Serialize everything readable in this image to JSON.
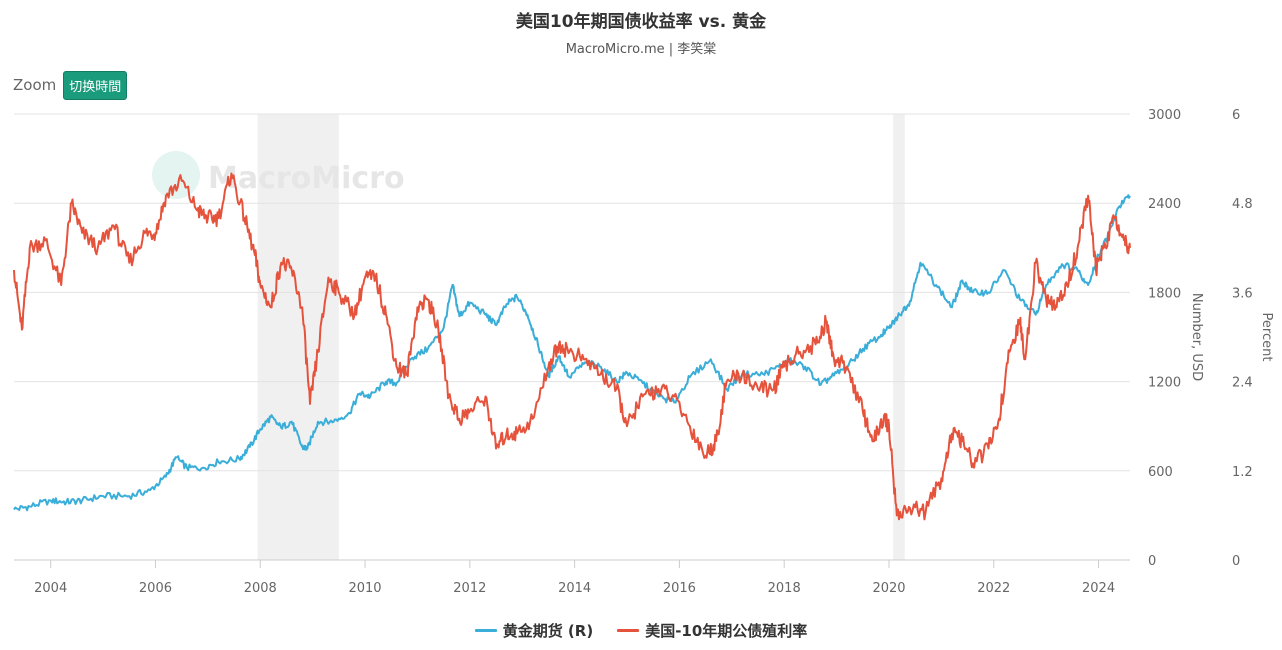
{
  "header": {
    "title": "美国10年期国债收益率 vs. 黄金",
    "subtitle": "MacroMicro.me | 李笑棠"
  },
  "zoom": {
    "label": "Zoom",
    "button_label": "切换時間"
  },
  "watermark": "MacroMicro",
  "colors": {
    "gold": "#3aaed8",
    "yield": "#e5533c",
    "recession": "#f0f0f0",
    "grid": "#e3e3e3"
  },
  "legend": [
    {
      "label": "黄金期货 (R)",
      "color": "#3aaed8"
    },
    {
      "label": "美国-10年期公债殖利率",
      "color": "#e5533c"
    }
  ],
  "chart_data": {
    "type": "line",
    "title": "美国10年期国债收益率 vs. 黄金",
    "x_range": [
      2003.3,
      2024.6
    ],
    "x_ticks": [
      2004,
      2006,
      2008,
      2010,
      2012,
      2014,
      2016,
      2018,
      2020,
      2022,
      2024
    ],
    "recessions": [
      [
        2007.95,
        2009.5
      ],
      [
        2020.08,
        2020.3
      ]
    ],
    "y_axes": [
      {
        "id": "usd",
        "label": "Number, USD",
        "range": [
          0,
          3000
        ],
        "ticks": [
          0,
          600,
          1200,
          1800,
          2400,
          3000
        ]
      },
      {
        "id": "pct",
        "label": "Percent",
        "range": [
          0,
          6
        ],
        "ticks": [
          "0",
          "1.2",
          "2.4",
          "3.6",
          "4.8",
          "6"
        ]
      }
    ],
    "series": [
      {
        "name": "黄金期货 (R)",
        "axis": "usd",
        "points": [
          [
            2003.3,
            340
          ],
          [
            2003.6,
            360
          ],
          [
            2004.0,
            400
          ],
          [
            2004.3,
            390
          ],
          [
            2004.6,
            400
          ],
          [
            2005.0,
            430
          ],
          [
            2005.5,
            430
          ],
          [
            2005.9,
            470
          ],
          [
            2006.2,
            560
          ],
          [
            2006.4,
            690
          ],
          [
            2006.6,
            620
          ],
          [
            2006.9,
            620
          ],
          [
            2007.2,
            660
          ],
          [
            2007.6,
            680
          ],
          [
            2007.8,
            760
          ],
          [
            2008.0,
            880
          ],
          [
            2008.2,
            960
          ],
          [
            2008.4,
            890
          ],
          [
            2008.6,
            930
          ],
          [
            2008.8,
            760
          ],
          [
            2008.9,
            750
          ],
          [
            2009.1,
            930
          ],
          [
            2009.4,
            930
          ],
          [
            2009.7,
            990
          ],
          [
            2009.9,
            1120
          ],
          [
            2010.1,
            1100
          ],
          [
            2010.4,
            1200
          ],
          [
            2010.6,
            1190
          ],
          [
            2010.9,
            1360
          ],
          [
            2011.2,
            1420
          ],
          [
            2011.5,
            1560
          ],
          [
            2011.67,
            1850
          ],
          [
            2011.8,
            1640
          ],
          [
            2012.0,
            1730
          ],
          [
            2012.3,
            1650
          ],
          [
            2012.5,
            1580
          ],
          [
            2012.7,
            1720
          ],
          [
            2012.9,
            1770
          ],
          [
            2013.1,
            1650
          ],
          [
            2013.3,
            1450
          ],
          [
            2013.5,
            1240
          ],
          [
            2013.7,
            1370
          ],
          [
            2013.9,
            1230
          ],
          [
            2014.2,
            1330
          ],
          [
            2014.5,
            1300
          ],
          [
            2014.8,
            1200
          ],
          [
            2015.0,
            1260
          ],
          [
            2015.3,
            1190
          ],
          [
            2015.6,
            1100
          ],
          [
            2015.9,
            1060
          ],
          [
            2016.2,
            1230
          ],
          [
            2016.6,
            1350
          ],
          [
            2016.9,
            1150
          ],
          [
            2017.2,
            1250
          ],
          [
            2017.6,
            1250
          ],
          [
            2017.9,
            1300
          ],
          [
            2018.1,
            1340
          ],
          [
            2018.4,
            1300
          ],
          [
            2018.7,
            1180
          ],
          [
            2018.9,
            1230
          ],
          [
            2019.2,
            1300
          ],
          [
            2019.5,
            1420
          ],
          [
            2019.8,
            1500
          ],
          [
            2020.0,
            1560
          ],
          [
            2020.2,
            1650
          ],
          [
            2020.4,
            1740
          ],
          [
            2020.6,
            2000
          ],
          [
            2020.9,
            1850
          ],
          [
            2021.2,
            1700
          ],
          [
            2021.4,
            1880
          ],
          [
            2021.6,
            1800
          ],
          [
            2021.9,
            1800
          ],
          [
            2022.2,
            1950
          ],
          [
            2022.5,
            1750
          ],
          [
            2022.8,
            1650
          ],
          [
            2023.0,
            1850
          ],
          [
            2023.3,
            1990
          ],
          [
            2023.6,
            1950
          ],
          [
            2023.8,
            1850
          ],
          [
            2024.0,
            2050
          ],
          [
            2024.2,
            2200
          ],
          [
            2024.4,
            2380
          ],
          [
            2024.6,
            2450
          ]
        ]
      },
      {
        "name": "美国-10年期公债殖利率",
        "axis": "pct",
        "points": [
          [
            2003.3,
            3.9
          ],
          [
            2003.45,
            3.1
          ],
          [
            2003.6,
            4.2
          ],
          [
            2003.9,
            4.3
          ],
          [
            2004.2,
            3.7
          ],
          [
            2004.4,
            4.8
          ],
          [
            2004.6,
            4.4
          ],
          [
            2004.9,
            4.2
          ],
          [
            2005.2,
            4.5
          ],
          [
            2005.5,
            4.0
          ],
          [
            2005.8,
            4.4
          ],
          [
            2006.0,
            4.4
          ],
          [
            2006.2,
            4.9
          ],
          [
            2006.5,
            5.1
          ],
          [
            2006.8,
            4.7
          ],
          [
            2007.0,
            4.6
          ],
          [
            2007.2,
            4.6
          ],
          [
            2007.45,
            5.2
          ],
          [
            2007.7,
            4.6
          ],
          [
            2007.9,
            4.1
          ],
          [
            2008.0,
            3.7
          ],
          [
            2008.2,
            3.4
          ],
          [
            2008.4,
            4.0
          ],
          [
            2008.6,
            3.9
          ],
          [
            2008.8,
            3.4
          ],
          [
            2008.95,
            2.1
          ],
          [
            2009.1,
            2.8
          ],
          [
            2009.3,
            3.8
          ],
          [
            2009.5,
            3.6
          ],
          [
            2009.8,
            3.3
          ],
          [
            2010.0,
            3.8
          ],
          [
            2010.2,
            3.8
          ],
          [
            2010.4,
            3.3
          ],
          [
            2010.6,
            2.6
          ],
          [
            2010.8,
            2.5
          ],
          [
            2011.0,
            3.4
          ],
          [
            2011.2,
            3.5
          ],
          [
            2011.4,
            3.1
          ],
          [
            2011.6,
            2.2
          ],
          [
            2011.8,
            1.9
          ],
          [
            2012.0,
            2.0
          ],
          [
            2012.3,
            2.2
          ],
          [
            2012.5,
            1.5
          ],
          [
            2012.7,
            1.7
          ],
          [
            2012.9,
            1.7
          ],
          [
            2013.2,
            1.9
          ],
          [
            2013.5,
            2.6
          ],
          [
            2013.7,
            2.9
          ],
          [
            2013.9,
            2.8
          ],
          [
            2014.2,
            2.7
          ],
          [
            2014.5,
            2.5
          ],
          [
            2014.8,
            2.3
          ],
          [
            2015.0,
            1.8
          ],
          [
            2015.3,
            2.2
          ],
          [
            2015.6,
            2.3
          ],
          [
            2015.9,
            2.2
          ],
          [
            2016.2,
            1.8
          ],
          [
            2016.5,
            1.4
          ],
          [
            2016.7,
            1.6
          ],
          [
            2016.9,
            2.4
          ],
          [
            2017.2,
            2.5
          ],
          [
            2017.5,
            2.3
          ],
          [
            2017.8,
            2.3
          ],
          [
            2018.0,
            2.6
          ],
          [
            2018.3,
            2.8
          ],
          [
            2018.6,
            2.9
          ],
          [
            2018.8,
            3.2
          ],
          [
            2018.95,
            2.7
          ],
          [
            2019.2,
            2.6
          ],
          [
            2019.5,
            2.0
          ],
          [
            2019.7,
            1.6
          ],
          [
            2019.9,
            1.9
          ],
          [
            2020.0,
            1.8
          ],
          [
            2020.15,
            0.6
          ],
          [
            2020.4,
            0.7
          ],
          [
            2020.7,
            0.65
          ],
          [
            2021.0,
            1.1
          ],
          [
            2021.2,
            1.7
          ],
          [
            2021.4,
            1.6
          ],
          [
            2021.6,
            1.3
          ],
          [
            2021.9,
            1.5
          ],
          [
            2022.1,
            1.9
          ],
          [
            2022.3,
            2.8
          ],
          [
            2022.5,
            3.2
          ],
          [
            2022.6,
            2.7
          ],
          [
            2022.8,
            4.0
          ],
          [
            2023.0,
            3.5
          ],
          [
            2023.2,
            3.4
          ],
          [
            2023.4,
            3.7
          ],
          [
            2023.6,
            4.2
          ],
          [
            2023.8,
            4.9
          ],
          [
            2023.95,
            3.9
          ],
          [
            2024.1,
            4.2
          ],
          [
            2024.3,
            4.6
          ],
          [
            2024.5,
            4.3
          ],
          [
            2024.6,
            4.2
          ]
        ]
      }
    ]
  }
}
